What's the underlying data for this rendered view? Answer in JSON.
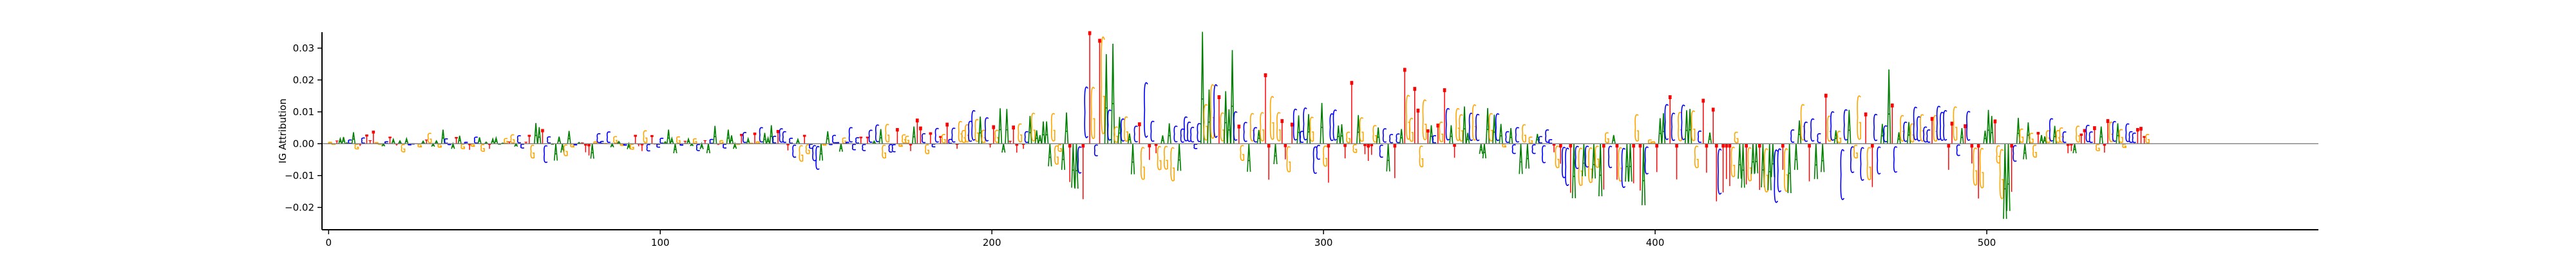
{
  "chart_data": {
    "type": "sequence-logo",
    "title": "",
    "xlabel": "",
    "ylabel": "IG Attribution",
    "xlim": [
      0,
      600
    ],
    "ylim": [
      -0.027,
      0.035
    ],
    "xticks": [
      0,
      100,
      200,
      300,
      400,
      500
    ],
    "yticks": [
      -0.02,
      -0.01,
      0.0,
      0.01,
      0.02,
      0.03
    ],
    "ytick_labels": [
      "−0.02",
      "−0.01",
      "0.00",
      "0.01",
      "0.02",
      "0.03"
    ],
    "grid": false,
    "legend": "none",
    "colors": {
      "A": "#008000",
      "C": "#0000ff",
      "G": "#ffa500",
      "T": "#ff0000"
    },
    "length": 600,
    "bases": "GGTAAACAGTCTTTGGACTATAGACCTGATGAAGACCATAGCTGCAGATAAAAGTGACCTTGAATCCAAAAGAGCATTTAGCCGCAGAGCAGTTTGCTTCCAAAAGCTAAGCATACATGCAAAGTCAGTGCAAACTCCTCCAGTGCCCAGACCCAGCCCCTCTCACAGGCCTGGGTATTCGTCCTGTCCTGGGCCGAGCTTGAAATTTGTCAGAAAAAGGGAATAACTCTGCTGACAGACGAACTGCTCTGAGAGCACCCCCCAGAGCTGAAACTGCAGCAGTTGAGTTGTCACCAGCCAGTCCAATGTGAGTTTGACCACTCATGGTTGGTACTGTCATGGAACGCAAAGACAGCACCAGAGCACCCCTGTCCTACGACGAGATGCATGCAATGTACGGTAACTCTGCAAGGCTTATTCTTTGGAATGAATAGAACCTGACAAGCTCACATGCAGCCACGGCTGTCCACATCAGCAGCCGCCTGCCCTTGCATCTGTGAAATGGAATCAGAAGGTAAGCAGGCTTAGTTCCTGATTGCAGGCCCTTTGTACTCCAGGCCTCAGTGAAGGATGCACCCTGCTGAGACTACCAGTCCCCATAGCTGTCTGTAACCCAGTTGAGGTCCAGGGTCAGAGCAAGCAGTCCTATCTTCCT",
    "values": [
      0.0005,
      -0.0002,
      0.001,
      0.0016,
      0.0021,
      0.0003,
      0.0013,
      0.0036,
      -0.0018,
      -0.0007,
      0.002,
      0.0029,
      0.0011,
      0.0041,
      0.0004,
      -0.0002,
      -0.0008,
      0.0007,
      0.0022,
      0.0014,
      -0.0006,
      0.0009,
      -0.0028,
      0.0016,
      -0.0004,
      -0.0001,
      0.0001,
      -0.0011,
      0.0008,
      0.0013,
      0.0036,
      -0.0009,
      0.0009,
      -0.0012,
      0.0044,
      0.0017,
      -0.0003,
      -0.0016,
      0.0021,
      0.0025,
      -0.0017,
      0.0005,
      -0.0019,
      -0.0009,
      0.0023,
      0.002,
      -0.0026,
      0.0005,
      -0.0016,
      0.0015,
      0.0018,
      -0.0002,
      0.0002,
      0.0018,
      0.0007,
      0.0031,
      -0.0009,
      0.0028,
      -0.0015,
      0.0006,
      0.0028,
      -0.0049,
      0.0065,
      0.0052,
      0.0046,
      -0.0065,
      0.0024,
      -0.0002,
      -0.0053,
      0.0022,
      -0.0028,
      -0.0041,
      0.004,
      -0.0011,
      -0.0004,
      0.0004,
      0.0004,
      -0.0027,
      -0.0037,
      -0.0047,
      0.0007,
      0.0035,
      0.0008,
      0.0001,
      0.0041,
      -0.0011,
      0.0025,
      0.0007,
      -0.0006,
      -0.0005,
      -0.0017,
      -0.0019,
      0.0028,
      -0.0008,
      -0.0023,
      0.0045,
      -0.0025,
      0.0027,
      -0.0002,
      -0.0012,
      0.0019,
      0.0006,
      0.0044,
      0.0017,
      -0.003,
      0.0024,
      -0.0005,
      0.0009,
      0.0015,
      -0.0007,
      0.0017,
      -0.0024,
      -0.0017,
      0.0011,
      -0.003,
      0.0015,
      0.0056,
      -0.0004,
      0.0011,
      -0.0015,
      0.0044,
      0.0026,
      -0.0016,
      -0.0002,
      0.0031,
      0.0039,
      0.0016,
      0.0002,
      0.0035,
      0.0007,
      0.0056,
      0.0034,
      0.0018,
      0.0058,
      0.0026,
      0.0043,
      0.0052,
      0.0042,
      -0.0021,
      0.0019,
      -0.0047,
      0.0014,
      -0.006,
      0.0028,
      -0.0034,
      -0.0016,
      -0.0059,
      -0.0089,
      -0.0053,
      -0.0005,
      0.0039,
      -0.0003,
      0.0029,
      0.0004,
      -0.0025,
      0.002,
      0.0005,
      0.0056,
      -0.0021,
      0.0021,
      0.0022,
      -0.0024,
      0.0022,
      0.0047,
      0.0008,
      0.0065,
      0.0046,
      -0.0049,
      0.0067,
      -0.0029,
      -0.0028,
      0.0049,
      -0.0009,
      0.0031,
      0.0026,
      -0.0023,
      0.0054,
      0.0079,
      0.0054,
      0.0035,
      -0.0034,
      0.0036,
      -0.0011,
      0.0053,
      0.0024,
      0.0032,
      0.0066,
      0.0015,
      0.0054,
      -0.0016,
      0.0077,
      0.0046,
      0.0066,
      0.0078,
      0.0115,
      0.0084,
      0.0085,
      0.0047,
      0.009,
      -0.0012,
      0.0058,
      0.0047,
      0.0111,
      -0.0028,
      0.0109,
      0.0009,
      0.0057,
      -0.0028,
      0.0069,
      -0.0016,
      0.0042,
      0.0087,
      0.0106,
      0.0042,
      0.0027,
      0.007,
      0.007,
      -0.0071,
      0.0105,
      -0.007,
      -0.0026,
      -0.0082,
      0.0098,
      -0.012,
      -0.0138,
      -0.0141,
      -0.0102,
      -0.0174,
      0.0197,
      0.0353,
      0.0196,
      -0.0042,
      0.0329,
      0.0371,
      0.0281,
      0.0117,
      0.0314,
      0.0058,
      0.0084,
      0.0086,
      0.0093,
      0.0032,
      -0.0096,
      0.0061,
      0.0067,
      -0.0122,
      0.0212,
      -0.0051,
      0.0078,
      -0.003,
      -0.0089,
      0.0026,
      -0.0087,
      0.0064,
      -0.0127,
      0.0061,
      -0.0085,
      0.0051,
      0.0093,
      0.0075,
      0.0057,
      -0.0017,
      0.007,
      0.0351,
      0.0136,
      0.017,
      0.0205,
      0.0205,
      0.0152,
      0.0107,
      0.0165,
      0.0108,
      0.0294,
      0.0111,
      0.006,
      -0.0057,
      0.0074,
      -0.0088,
      0.0105,
      0.0056,
      0.0043,
      0.0108,
      0.0221,
      -0.0113,
      0.0164,
      -0.0064,
      0.0108,
      0.0077,
      -0.0049,
      -0.0096,
      0.0066,
      0.012,
      0.0089,
      0.0043,
      0.0124,
      0.0093,
      0.0092,
      -0.0103,
      -0.0054,
      0.0128,
      -0.0077,
      -0.0122,
      0.0104,
      0.0117,
      0.0057,
      0.0061,
      -0.0046,
      0.004,
      0.0197,
      -0.003,
      0.009,
      0.009,
      -0.0033,
      -0.0054,
      -0.0035,
      0.0063,
      0.0051,
      -0.0047,
      0.0052,
      -0.0087,
      0.0032,
      -0.0108,
      0.0034,
      0.0046,
      0.0238,
      0.0168,
      0.0088,
      0.0178,
      0.011,
      -0.0079,
      0.0152,
      0.0045,
      0.0058,
      0.0028,
      0.0063,
      0.0075,
      0.0174,
      0.0122,
      0.0058,
      -0.0044,
      0.0122,
      0.0101,
      0.0117,
      0.0034,
      0.0106,
      0.0135,
      0.0102,
      -0.0032,
      -0.0046,
      0.0112,
      0.0105,
      0.0091,
      0.0104,
      0.0062,
      -0.0011,
      0.0042,
      0.0049,
      -0.0034,
      0.0056,
      -0.0095,
      0.0066,
      -0.0078,
      0.0023,
      -0.0034,
      0.0031,
      0.0025,
      -0.0066,
      0.0048,
      0.0014,
      -0.0027,
      -0.0082,
      -0.0063,
      -0.0118,
      -0.0145,
      -0.0154,
      -0.0171,
      -0.0086,
      -0.0143,
      -0.0102,
      -0.0081,
      -0.0133,
      -0.0109,
      -0.0081,
      -0.0165,
      -0.0144,
      0.0038,
      -0.0083,
      0.0027,
      -0.0113,
      -0.0128,
      -0.0152,
      -0.0119,
      -0.0119,
      -0.0124,
      0.0101,
      -0.0147,
      -0.0193,
      -0.0105,
      0.0013,
      0.0007,
      -0.0089,
      0.008,
      0.0096,
      0.0136,
      0.0152,
      0.0106,
      -0.0112,
      0.0109,
      0.0134,
      0.0105,
      0.0109,
      0.0114,
      -0.0082,
      0.0044,
      0.0141,
      -0.0091,
      0.0035,
      0.0113,
      -0.0181,
      -0.0175,
      -0.0153,
      -0.0111,
      -0.0133,
      -0.0113,
      0.004,
      -0.011,
      -0.0138,
      -0.0128,
      -0.0127,
      -0.0095,
      -0.0093,
      -0.0145,
      -0.0137,
      -0.0165,
      -0.0146,
      -0.0105,
      -0.0204,
      -0.0167,
      -0.0082,
      -0.0163,
      -0.0155,
      0.0048,
      -0.0082,
      0.0073,
      0.0136,
      0.0075,
      -0.0118,
      0.0086,
      -0.0111,
      0.0035,
      -0.0089,
      0.0157,
      0.0096,
      0.0111,
      0.0042,
      0.0043,
      -0.0194,
      0.0118,
      0.0106,
      -0.01,
      -0.0049,
      0.0166,
      -0.0127,
      0.0098,
      -0.0123,
      -0.0136,
      0.0102,
      -0.0105,
      0.0062,
      0.0062,
      0.0233,
      0.0126,
      -0.0099,
      0.0036,
      0.0098,
      0.0075,
      0.0068,
      0.0069,
      0.0127,
      0.0094,
      0.0101,
      0.0058,
      0.0048,
      0.0084,
      0.0098,
      0.013,
      0.0109,
      0.0115,
      -0.0082,
      0.0069,
      0.0128,
      -0.0041,
      0.0049,
      0.0061,
      0.0112,
      -0.0062,
      -0.0142,
      -0.0172,
      -0.0151,
      0.0041,
      0.0106,
      0.0087,
      0.0076,
      -0.0066,
      -0.0188,
      -0.0236,
      -0.0211,
      -0.0151,
      -0.0061,
      0.0081,
      0.0051,
      -0.0049,
      0.0067,
      0.0036,
      -0.0046,
      0.0037,
      0.0027,
      0.0023,
      0.0045,
      0.0087,
      0.0056,
      0.0046,
      0.0055,
      0.0041,
      -0.003,
      -0.0023,
      -0.003,
      0.0061,
      0.0032,
      0.0046,
      0.0064,
      0.0041,
      0.0055,
      -0.0024,
      0.0054,
      -0.0028,
      0.0077,
      0.0075,
      0.0077,
      0.0064,
      0.0049,
      -0.0013,
      0.0069,
      0.0042,
      0.0037,
      0.0049,
      0.0053,
      0.0024,
      0.0032
    ]
  }
}
